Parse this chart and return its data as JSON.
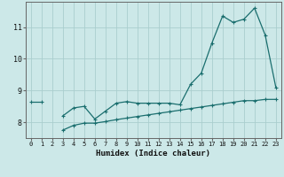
{
  "xlabel": "Humidex (Indice chaleur)",
  "background_color": "#cce8e8",
  "line_color": "#1a6e6e",
  "grid_color": "#aacece",
  "x_values": [
    0,
    1,
    2,
    3,
    4,
    5,
    6,
    7,
    8,
    9,
    10,
    11,
    12,
    13,
    14,
    15,
    16,
    17,
    18,
    19,
    20,
    21,
    22,
    23
  ],
  "line1_y": [
    8.65,
    8.65,
    null,
    8.2,
    8.45,
    8.5,
    8.1,
    8.35,
    8.6,
    8.65,
    8.6,
    8.6,
    8.6,
    8.6,
    8.55,
    9.2,
    9.55,
    10.5,
    11.35,
    11.15,
    11.25,
    11.6,
    10.75,
    9.1
  ],
  "line2_y": [
    null,
    null,
    null,
    7.75,
    7.9,
    7.97,
    7.97,
    8.02,
    8.08,
    8.13,
    8.18,
    8.23,
    8.28,
    8.33,
    8.38,
    8.43,
    8.48,
    8.53,
    8.58,
    8.63,
    8.68,
    8.68,
    8.72,
    8.72
  ],
  "ylim": [
    7.5,
    11.8
  ],
  "xlim": [
    -0.5,
    23.5
  ],
  "yticks": [
    8,
    9,
    10,
    11
  ],
  "xticks": [
    0,
    1,
    2,
    3,
    4,
    5,
    6,
    7,
    8,
    9,
    10,
    11,
    12,
    13,
    14,
    15,
    16,
    17,
    18,
    19,
    20,
    21,
    22,
    23
  ]
}
